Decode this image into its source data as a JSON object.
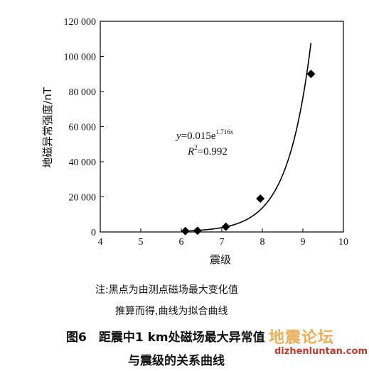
{
  "chart_data": {
    "type": "scatter",
    "xlabel": "震级",
    "ylabel": "地磁异常强度/nT",
    "xlim": [
      4,
      10
    ],
    "ylim": [
      0,
      120000
    ],
    "xticks": [
      4,
      5,
      6,
      7,
      8,
      9,
      10
    ],
    "yticks": [
      0,
      20000,
      40000,
      60000,
      80000,
      100000,
      120000
    ],
    "x_tick_labels": [
      "4",
      "5",
      "6",
      "7",
      "8",
      "9",
      "10"
    ],
    "y_tick_labels": [
      "0",
      "20 000",
      "40 000",
      "60 000",
      "80 000",
      "100 000",
      "120 000"
    ],
    "points": [
      {
        "x": 6.1,
        "y": 500
      },
      {
        "x": 6.4,
        "y": 700
      },
      {
        "x": 7.1,
        "y": 3000
      },
      {
        "x": 7.95,
        "y": 19000
      },
      {
        "x": 9.2,
        "y": 90000
      }
    ],
    "fit": {
      "a": 0.015,
      "b": 1.716,
      "x_start": 6.05,
      "x_end": 9.2
    },
    "equation": {
      "y_var": "y",
      "y_rhs": "=0.015e",
      "y_exp": "1.716x",
      "r_var": "R",
      "r_sup": "2",
      "r_rhs": "=0.992"
    },
    "grid": false,
    "marker": "diamond",
    "colors": {
      "marker": "#000000",
      "line": "#000000"
    }
  },
  "notes": {
    "line1": "注:黑点为由测点磁场最大变化值",
    "line2": "推算而得,曲线为拟合曲线"
  },
  "caption": {
    "line1": "图6　距震中1 km处磁场最大异常值",
    "line2": "与震级的关系曲线"
  },
  "watermark": {
    "logo": "地震论坛",
    "url": "dizhenluntan.com"
  }
}
